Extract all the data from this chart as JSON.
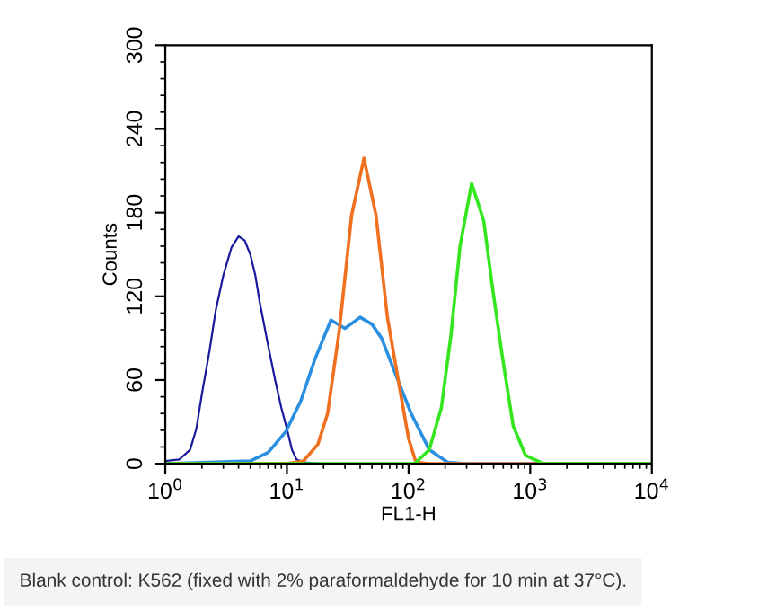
{
  "chart_data": {
    "type": "line",
    "xlabel": "FL1-H",
    "ylabel": "Counts",
    "log": "x",
    "xlim": [
      1,
      10000
    ],
    "xticks": [
      {
        "value": 1,
        "label": "10$^{0}$"
      },
      {
        "value": 10,
        "label": "10$^{1}$"
      },
      {
        "value": 100,
        "label": "10$^{2}$"
      },
      {
        "value": 1000,
        "label": "10$^{3}$"
      },
      {
        "value": 10000,
        "label": "10$^{4}$"
      }
    ],
    "ylim": [
      0,
      300
    ],
    "yticks": [
      0,
      60,
      120,
      180,
      240,
      300
    ],
    "grid": false,
    "legend": false,
    "marker": "none",
    "line_style": "solid",
    "annotations": [
      "Blank control: K562 (fixed with 2% paraformaldehyde for 10 min at 37°C)."
    ],
    "series": [
      {
        "color": "#1a1a9e",
        "x": [
          1,
          1.3,
          1.6,
          1.8,
          2.0,
          2.3,
          2.6,
          3.0,
          3.5,
          4.0,
          4.5,
          5.0,
          5.5,
          6.0,
          7.0,
          8.0,
          9.0,
          10,
          11,
          12,
          14,
          20,
          10000
        ],
        "values": [
          2,
          3,
          10,
          25,
          50,
          80,
          110,
          135,
          155,
          163,
          160,
          150,
          135,
          115,
          85,
          60,
          40,
          25,
          10,
          3,
          1,
          0,
          0
        ]
      },
      {
        "color": "#2a8fe0",
        "x": [
          1,
          5,
          7,
          9.8,
          13,
          17,
          20,
          23,
          30,
          40,
          50,
          60,
          80,
          105,
          148,
          210,
          300,
          10000
        ],
        "values": [
          0,
          2,
          8,
          23,
          45,
          75,
          90,
          103,
          97,
          105,
          100,
          90,
          62,
          36,
          10,
          1,
          0,
          0
        ]
      },
      {
        "color": "#f07020",
        "x": [
          1,
          10,
          13.7,
          18,
          21.6,
          27,
          34,
          43,
          54,
          67,
          85,
          100,
          115,
          150,
          10000
        ],
        "values": [
          0,
          0,
          2,
          14,
          36,
          96,
          178,
          219,
          178,
          105,
          53,
          18,
          1,
          0,
          0
        ]
      },
      {
        "color": "#33e61e",
        "x": [
          1,
          112,
          148,
          186,
          223,
          265,
          330,
          415,
          490,
          585,
          725,
          915,
          1290,
          10000
        ],
        "values": [
          0,
          0,
          10,
          40,
          92,
          156,
          201,
          174,
          126,
          79,
          27,
          6,
          0,
          0
        ]
      }
    ]
  }
}
